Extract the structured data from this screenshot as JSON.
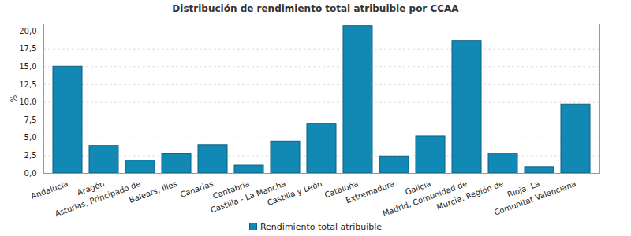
{
  "chart_data": {
    "type": "bar",
    "title": "Distribución de rendimiento total atribuible por CCAA",
    "y_label": "%",
    "categories": [
      "Andalucía",
      "Aragón",
      "Asturias, Principado de",
      "Balears, Illes",
      "Canarias",
      "Cantabria",
      "Castilla - La Mancha",
      "Castilla y León",
      "Cataluña",
      "Extremadura",
      "Galicia",
      "Madrid, Comunidad de",
      "Murcia, Región de",
      "Rioja, La",
      "Comunitat Valenciana"
    ],
    "series": [
      {
        "name": "Rendimiento total atribuible",
        "color": "#1289b4",
        "values": [
          15.0,
          3.9,
          1.8,
          2.7,
          4.0,
          1.1,
          4.5,
          7.0,
          20.7,
          2.4,
          5.2,
          18.6,
          2.8,
          0.9,
          9.7
        ]
      }
    ],
    "ylim": [
      0,
      21
    ],
    "yticks": [
      {
        "value": 0,
        "label": "0,0"
      },
      {
        "value": 2.5,
        "label": "2,5"
      },
      {
        "value": 5,
        "label": "5,0"
      },
      {
        "value": 7.5,
        "label": "7,5"
      },
      {
        "value": 10,
        "label": "10,0"
      },
      {
        "value": 12.5,
        "label": "12,5"
      },
      {
        "value": 15,
        "label": "15,0"
      },
      {
        "value": 17.5,
        "label": "17,5"
      },
      {
        "value": 20,
        "label": "20,0"
      }
    ],
    "grid": true,
    "legend": "bottom"
  }
}
